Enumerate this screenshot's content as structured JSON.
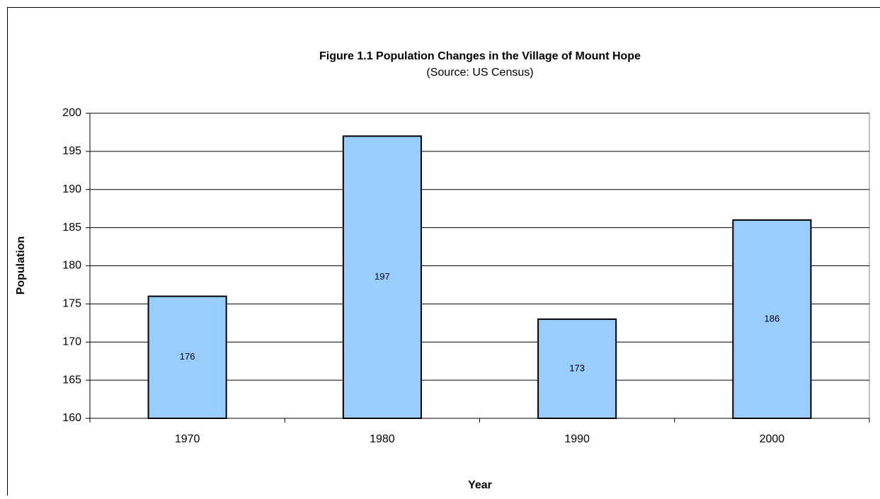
{
  "chart_data": {
    "type": "bar",
    "title": "Figure 1.1 Population Changes in the Village of Mount Hope",
    "subtitle": "(Source: US Census)",
    "x_label": "Year",
    "y_label": "Population",
    "categories": [
      "1970",
      "1980",
      "1990",
      "2000"
    ],
    "values": [
      176,
      197,
      173,
      186
    ],
    "color": "#99ccff",
    "ylim": [
      160,
      200
    ],
    "yticks": [
      160,
      165,
      170,
      175,
      180,
      185,
      190,
      195,
      200
    ],
    "grid": true,
    "data_labels": true
  }
}
